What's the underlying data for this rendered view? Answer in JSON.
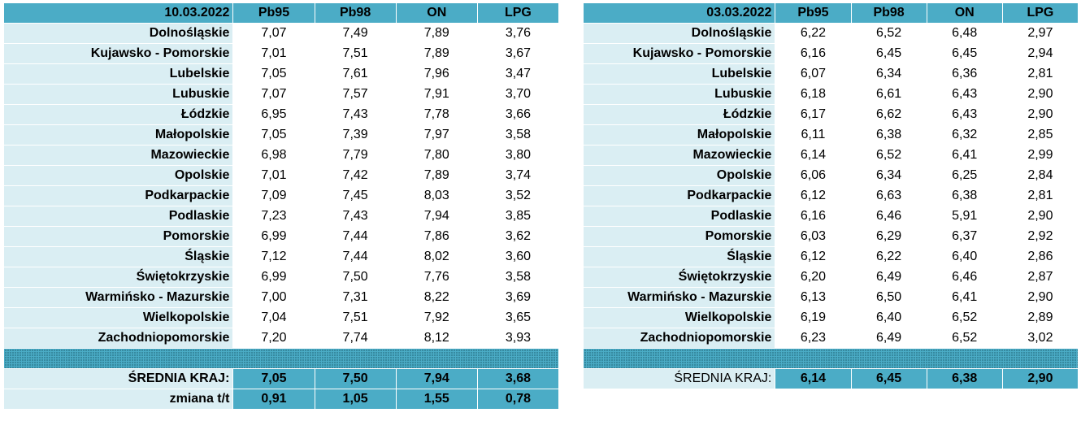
{
  "left": {
    "date": "10.03.2022",
    "columns": [
      "Pb95",
      "Pb98",
      "ON",
      "LPG"
    ],
    "rows": [
      {
        "region": "Dolnośląskie",
        "values": [
          "7,07",
          "7,49",
          "7,89",
          "3,76"
        ]
      },
      {
        "region": "Kujawsko - Pomorskie",
        "values": [
          "7,01",
          "7,51",
          "7,89",
          "3,67"
        ]
      },
      {
        "region": "Lubelskie",
        "values": [
          "7,05",
          "7,61",
          "7,96",
          "3,47"
        ]
      },
      {
        "region": "Lubuskie",
        "values": [
          "7,07",
          "7,57",
          "7,91",
          "3,70"
        ]
      },
      {
        "region": "Łódzkie",
        "values": [
          "6,95",
          "7,43",
          "7,78",
          "3,66"
        ]
      },
      {
        "region": "Małopolskie",
        "values": [
          "7,05",
          "7,39",
          "7,97",
          "3,58"
        ]
      },
      {
        "region": "Mazowieckie",
        "values": [
          "6,98",
          "7,79",
          "7,80",
          "3,80"
        ]
      },
      {
        "region": "Opolskie",
        "values": [
          "7,01",
          "7,42",
          "7,89",
          "3,74"
        ]
      },
      {
        "region": "Podkarpackie",
        "values": [
          "7,09",
          "7,45",
          "8,03",
          "3,52"
        ]
      },
      {
        "region": "Podlaskie",
        "values": [
          "7,23",
          "7,43",
          "7,94",
          "3,85"
        ]
      },
      {
        "region": "Pomorskie",
        "values": [
          "6,99",
          "7,44",
          "7,86",
          "3,62"
        ]
      },
      {
        "region": "Śląskie",
        "values": [
          "7,12",
          "7,44",
          "8,02",
          "3,60"
        ]
      },
      {
        "region": "Świętokrzyskie",
        "values": [
          "6,99",
          "7,50",
          "7,76",
          "3,58"
        ]
      },
      {
        "region": "Warmińsko - Mazurskie",
        "values": [
          "7,00",
          "7,31",
          "8,22",
          "3,69"
        ]
      },
      {
        "region": "Wielkopolskie",
        "values": [
          "7,04",
          "7,51",
          "7,92",
          "3,65"
        ]
      },
      {
        "region": "Zachodniopomorskie",
        "values": [
          "7,20",
          "7,74",
          "8,12",
          "3,93"
        ]
      }
    ],
    "average": {
      "label": "ŚREDNIA KRAJ:",
      "values": [
        "7,05",
        "7,50",
        "7,94",
        "3,68"
      ]
    },
    "change": {
      "label": "zmiana  t/t",
      "values": [
        "0,91",
        "1,05",
        "1,55",
        "0,78"
      ]
    }
  },
  "right": {
    "date": "03.03.2022",
    "columns": [
      "Pb95",
      "Pb98",
      "ON",
      "LPG"
    ],
    "rows": [
      {
        "region": "Dolnośląskie",
        "values": [
          "6,22",
          "6,52",
          "6,48",
          "2,97"
        ]
      },
      {
        "region": "Kujawsko - Pomorskie",
        "values": [
          "6,16",
          "6,45",
          "6,45",
          "2,94"
        ]
      },
      {
        "region": "Lubelskie",
        "values": [
          "6,07",
          "6,34",
          "6,36",
          "2,81"
        ]
      },
      {
        "region": "Lubuskie",
        "values": [
          "6,18",
          "6,61",
          "6,43",
          "2,90"
        ]
      },
      {
        "region": "Łódzkie",
        "values": [
          "6,17",
          "6,62",
          "6,43",
          "2,90"
        ]
      },
      {
        "region": "Małopolskie",
        "values": [
          "6,11",
          "6,38",
          "6,32",
          "2,85"
        ]
      },
      {
        "region": "Mazowieckie",
        "values": [
          "6,14",
          "6,52",
          "6,41",
          "2,99"
        ]
      },
      {
        "region": "Opolskie",
        "values": [
          "6,06",
          "6,34",
          "6,25",
          "2,84"
        ]
      },
      {
        "region": "Podkarpackie",
        "values": [
          "6,12",
          "6,63",
          "6,38",
          "2,81"
        ]
      },
      {
        "region": "Podlaskie",
        "values": [
          "6,16",
          "6,46",
          "5,91",
          "2,90"
        ]
      },
      {
        "region": "Pomorskie",
        "values": [
          "6,03",
          "6,29",
          "6,37",
          "2,92"
        ]
      },
      {
        "region": "Śląskie",
        "values": [
          "6,12",
          "6,22",
          "6,40",
          "2,86"
        ]
      },
      {
        "region": "Świętokrzyskie",
        "values": [
          "6,20",
          "6,49",
          "6,46",
          "2,87"
        ]
      },
      {
        "region": "Warmińsko - Mazurskie",
        "values": [
          "6,13",
          "6,50",
          "6,41",
          "2,90"
        ]
      },
      {
        "region": "Wielkopolskie",
        "values": [
          "6,19",
          "6,40",
          "6,52",
          "2,89"
        ]
      },
      {
        "region": "Zachodniopomorskie",
        "values": [
          "6,23",
          "6,49",
          "6,52",
          "3,02"
        ]
      }
    ],
    "average": {
      "label": "ŚREDNIA KRAJ:",
      "values": [
        "6,14",
        "6,45",
        "6,38",
        "2,90"
      ]
    }
  },
  "colors": {
    "header": "#4bacc6",
    "label_bg": "#daeef3",
    "cell_bg": "#ffffff"
  }
}
